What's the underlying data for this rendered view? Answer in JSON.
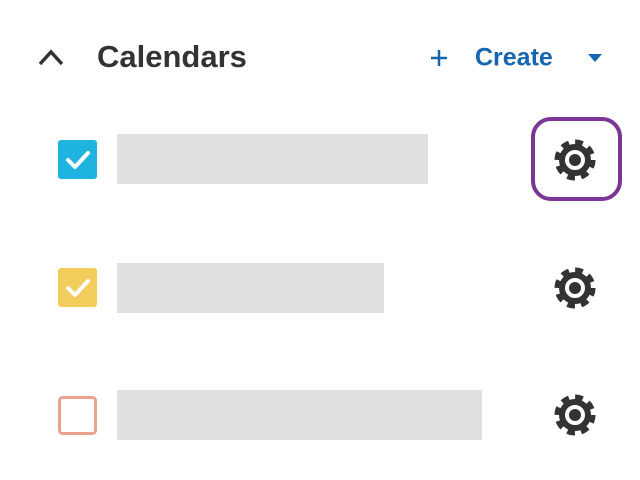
{
  "header": {
    "title": "Calendars",
    "create_label": "Create"
  }
}
